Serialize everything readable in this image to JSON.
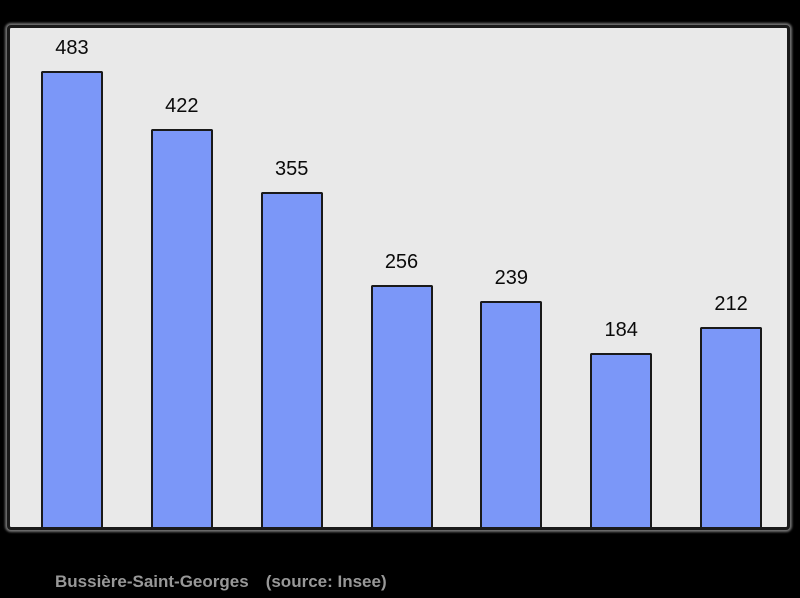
{
  "page": {
    "background_color": "#000000"
  },
  "panel": {
    "background_color": "#e9e9e9",
    "border_color": "#1a1a1a"
  },
  "chart_data": {
    "type": "bar",
    "values": [
      483,
      422,
      355,
      256,
      239,
      184,
      212
    ],
    "value_labels": [
      "483",
      "422",
      "355",
      "256",
      "239",
      "184",
      "212"
    ],
    "title": "",
    "xlabel": "",
    "ylabel": "",
    "ylim": [
      0,
      500
    ],
    "grid": false,
    "legend_position": "none",
    "axis_labels_shown": false,
    "value_labels_shown": true,
    "bar_color": "#7b97f8",
    "bar_border_color": "#1a1a1a",
    "value_label_color": "#0a0a0a"
  },
  "caption": {
    "title": "Bussière-Saint-Georges",
    "source": "(source: Insee)",
    "text_color": "#989898"
  }
}
